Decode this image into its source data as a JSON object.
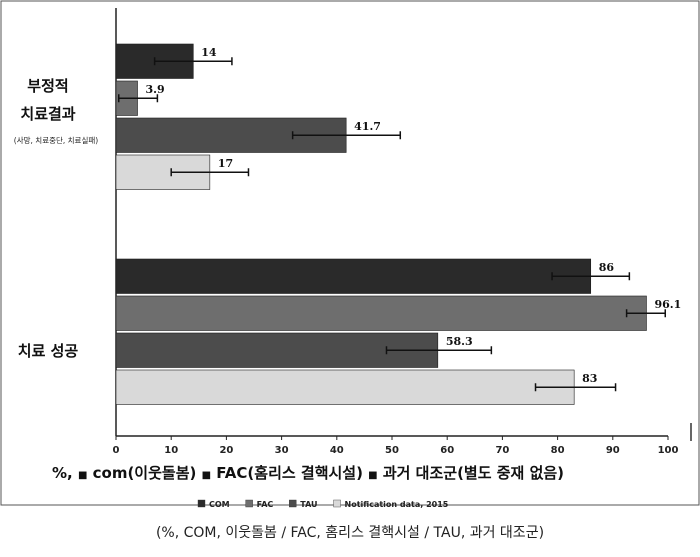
{
  "chart_data": {
    "type": "bar",
    "orientation": "horizontal",
    "xlim": [
      0,
      100
    ],
    "xticks": [
      0,
      10,
      20,
      30,
      40,
      50,
      60,
      70,
      80,
      90,
      100
    ],
    "groups": [
      {
        "label_lines": [
          "부정적",
          "치료결과"
        ],
        "sublabel": "(사망, 치료중단, 치료실패)",
        "bars": [
          {
            "series": "COM",
            "value": 14,
            "label": "14",
            "err": [
              7,
              21
            ]
          },
          {
            "series": "FAC",
            "value": 3.9,
            "label": "3.9",
            "err": [
              0.5,
              7.5
            ]
          },
          {
            "series": "TAU",
            "value": 41.7,
            "label": "41.7",
            "err": [
              32,
              51.5
            ]
          },
          {
            "series": "Notification data, 2015",
            "value": 17,
            "label": "17",
            "err": [
              10,
              24
            ]
          }
        ]
      },
      {
        "label_lines": [
          "치료 성공"
        ],
        "sublabel": "",
        "bars": [
          {
            "series": "COM",
            "value": 86,
            "label": "86",
            "err": [
              79,
              93
            ]
          },
          {
            "series": "FAC",
            "value": 96.1,
            "label": "96.1",
            "err": [
              92.5,
              99.5
            ]
          },
          {
            "series": "TAU",
            "value": 58.3,
            "label": "58.3",
            "err": [
              49,
              68
            ]
          },
          {
            "series": "Notification data, 2015",
            "value": 83,
            "label": "83",
            "err": [
              76,
              90.5
            ]
          }
        ]
      }
    ],
    "series": [
      {
        "name": "COM",
        "color": "#2a2a2a"
      },
      {
        "name": "FAC",
        "color": "#6e6e6e"
      },
      {
        "name": "TAU",
        "color": "#4c4c4c"
      },
      {
        "name": "Notification data, 2015",
        "color": "#d9d9d9"
      }
    ],
    "legend_korean": {
      "prefix": "%,",
      "items": [
        {
          "marker": "■",
          "text": "com(이웃돌봄)"
        },
        {
          "marker": "■",
          "text": "FAC(홈리스 결핵시설)"
        },
        {
          "marker": "■",
          "text": "과거 대조군(별도 중재 없음)"
        }
      ]
    },
    "legend_position": "bottom",
    "grid": false
  },
  "caption": "(%, COM, 이웃돌봄 / FAC, 홈리스 결핵시설 / TAU, 과거 대조군)"
}
